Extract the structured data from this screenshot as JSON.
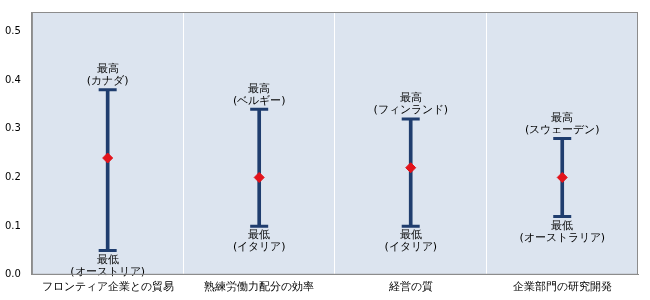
{
  "chart_data": {
    "type": "range",
    "categories": [
      "フロンティア企業との貿易",
      "熟練労働力配分の効率",
      "経営の質",
      "企業部門の研究開発"
    ],
    "values": [
      0.24,
      0.2,
      0.22,
      0.2
    ],
    "high": [
      0.38,
      0.34,
      0.32,
      0.28
    ],
    "low": [
      0.05,
      0.1,
      0.1,
      0.12
    ],
    "high_labels": [
      [
        "最高",
        "(カナダ)"
      ],
      [
        "最高",
        "(ベルギー)"
      ],
      [
        "最高",
        "(フィンランド)"
      ],
      [
        "最高",
        "(スウェーデン)"
      ]
    ],
    "low_labels": [
      [
        "最低",
        "(オーストリア)"
      ],
      [
        "最低",
        "(イタリア)"
      ],
      [
        "最低",
        "(イタリア)"
      ],
      [
        "最低",
        "(オーストラリア)"
      ]
    ],
    "color": "#e3131b",
    "marker": "diamond",
    "ylim": [
      0,
      0.54
    ],
    "yticks": [
      {
        "value": 0,
        "label": "0.0"
      },
      0.1,
      0.2,
      0.3,
      0.4,
      0.5
    ],
    "grid": true
  }
}
